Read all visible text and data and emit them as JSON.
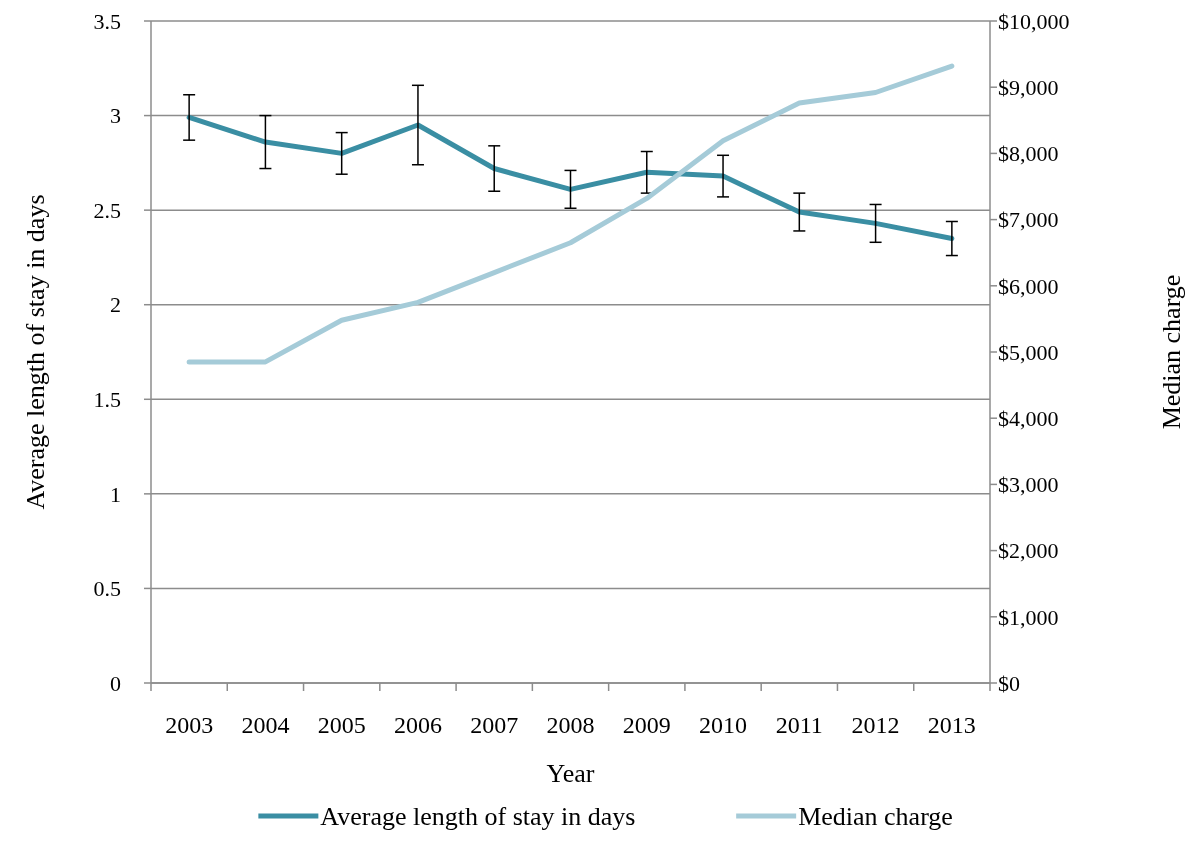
{
  "chart_data": {
    "type": "line",
    "xlabel": "Year",
    "ylabel": "Average length of stay in days",
    "y2label": "Median charge",
    "categories": [
      "2003",
      "2004",
      "2005",
      "2006",
      "2007",
      "2008",
      "2009",
      "2010",
      "2011",
      "2012",
      "2013"
    ],
    "series": [
      {
        "name": "Average length of stay in days",
        "color": "#3a8ea3",
        "values": [
          2.99,
          2.86,
          2.8,
          2.95,
          2.72,
          2.61,
          2.7,
          2.68,
          2.49,
          2.43,
          2.35
        ],
        "errors": [
          0.12,
          0.14,
          0.11,
          0.21,
          0.12,
          0.1,
          0.11,
          0.11,
          0.1,
          0.1,
          0.09
        ]
      },
      {
        "name": "Median charge",
        "color": "#a5cbd8",
        "axis": "y2",
        "values": [
          4850,
          4850,
          5480,
          5750,
          6200,
          6650,
          7320,
          8190,
          8760,
          8920,
          9320
        ]
      }
    ],
    "ylim": [
      0,
      3.5
    ],
    "yticks": [
      0,
      0.5,
      1,
      1.5,
      2,
      2.5,
      3,
      3.5
    ],
    "y2lim": [
      0,
      10000
    ],
    "y2ticks": [
      {
        "value": 0,
        "label": "$0"
      },
      {
        "value": 1000,
        "label": "$1,000"
      },
      {
        "value": 2000,
        "label": "$2,000"
      },
      {
        "value": 3000,
        "label": "$3,000"
      },
      {
        "value": 4000,
        "label": "$4,000"
      },
      {
        "value": 5000,
        "label": "$5,000"
      },
      {
        "value": 6000,
        "label": "$6,000"
      },
      {
        "value": 7000,
        "label": "$7,000"
      },
      {
        "value": 8000,
        "label": "$8,000"
      },
      {
        "value": 9000,
        "label": "$9,000"
      },
      {
        "value": 10000,
        "label": "$10,000"
      }
    ],
    "grid": "y",
    "legend": "bottom",
    "marker": "none",
    "line_style": "solid"
  }
}
